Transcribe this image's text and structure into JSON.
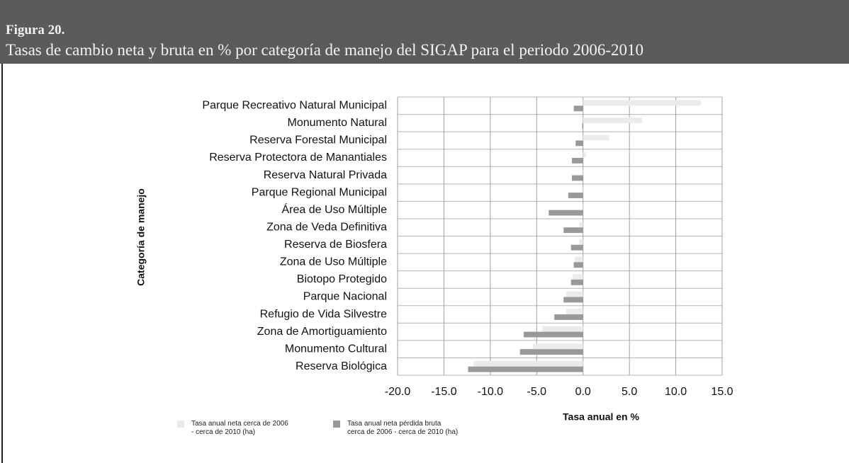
{
  "header": {
    "figure": "Figura 20.",
    "title": "Tasas de cambio neta y bruta en % por categoría de manejo del SIGAP para el periodo 2006-2010"
  },
  "chart_data": {
    "type": "barh",
    "x_label": "Tasa anual en %",
    "y_label": "Categoría de manejo",
    "categories": [
      "Parque Recreativo Natural Municipal",
      "Monumento Natural",
      "Reserva Forestal Municipal",
      "Reserva Protectora de Manantiales",
      "Reserva Natural Privada",
      "Parque Regional Municipal",
      "Área de Uso Múltiple",
      "Zona de Veda Definitiva",
      "Reserva de Biosfera",
      "Zona de Uso Múltiple",
      "Biotopo Protegido",
      "Parque Nacional",
      "Refugio de Vida Silvestre",
      "Zona de Amortiguamiento",
      "Monumento Cultural",
      "Reserva Biológica"
    ],
    "series": [
      {
        "name": "Tasa anual neta cerca de 2006\n- cerca de 2010 (ha)",
        "color": "#ebebeb",
        "values": [
          12.7,
          6.4,
          2.8,
          0.3,
          -0.1,
          -0.1,
          -0.1,
          -0.4,
          -0.4,
          -0.9,
          -1.1,
          -1.8,
          -1.8,
          -4.4,
          -5.4,
          -11.8
        ]
      },
      {
        "name": "Tasa anual neta pérdida bruta\ncerca de 2006 - cerca de 2010 (ha)",
        "color": "#999999",
        "values": [
          -1.0,
          -0.1,
          -0.8,
          -1.2,
          -1.2,
          -1.6,
          -3.7,
          -2.1,
          -1.3,
          -1.0,
          -1.3,
          -2.1,
          -3.1,
          -6.4,
          -6.8,
          -12.4
        ]
      }
    ],
    "xlim": [
      -20,
      15
    ],
    "xticks": [
      {
        "value": -20,
        "label": "-20.0"
      },
      {
        "value": -15,
        "label": "-15.0"
      },
      {
        "value": -10,
        "label": "-10.0"
      },
      {
        "value": -5,
        "label": "-5.0"
      },
      {
        "value": 0,
        "label": "0.0"
      },
      {
        "value": 5,
        "label": "5.0"
      },
      {
        "value": 10,
        "label": "10.0"
      },
      {
        "value": 15,
        "label": "15.0"
      }
    ],
    "grid": true
  }
}
